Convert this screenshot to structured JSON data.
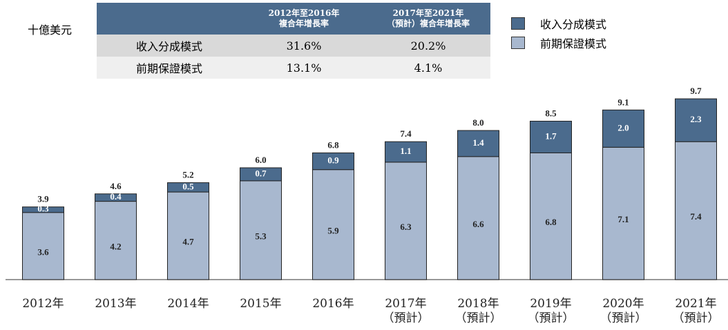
{
  "chart_data": {
    "type": "stacked_bar",
    "unit_label": "十億美元",
    "categories": [
      "2012年",
      "2013年",
      "2014年",
      "2015年",
      "2016年",
      "2017年\n（預計）",
      "2018年\n（預計）",
      "2019年\n（預計）",
      "2020年\n（預計）",
      "2021年\n（預計）"
    ],
    "series": [
      {
        "name": "前期保證模式",
        "color": "#a8b8cf",
        "values": [
          3.6,
          4.2,
          4.7,
          5.3,
          5.9,
          6.3,
          6.6,
          6.8,
          7.1,
          7.4
        ]
      },
      {
        "name": "收入分成模式",
        "color": "#4b6b8d",
        "values": [
          0.3,
          0.4,
          0.5,
          0.7,
          0.9,
          1.1,
          1.4,
          1.7,
          2.0,
          2.3
        ],
        "value_labels": [
          "0.3",
          "0.4",
          "0.5",
          "0.7",
          "0.9",
          "1.1",
          "1.4",
          "1.7",
          "2.0",
          "2.3"
        ]
      }
    ],
    "totals": [
      3.9,
      4.6,
      5.2,
      6.0,
      6.8,
      7.4,
      8.0,
      8.5,
      9.1,
      9.7
    ],
    "total_labels": [
      "3.9",
      "4.6",
      "5.2",
      "6.0",
      "6.8",
      "7.4",
      "8.0",
      "8.5",
      "9.1",
      "9.7"
    ],
    "ylim": [
      0,
      10
    ]
  },
  "table": {
    "header": [
      "2012年至2016年\n複合年增長率",
      "2017年至2021年\n（預計）複合年增長率"
    ],
    "rows": [
      [
        "收入分成模式",
        "31.6%",
        "20.2%"
      ],
      [
        "前期保證模式",
        "13.1%",
        "4.1%"
      ]
    ]
  }
}
